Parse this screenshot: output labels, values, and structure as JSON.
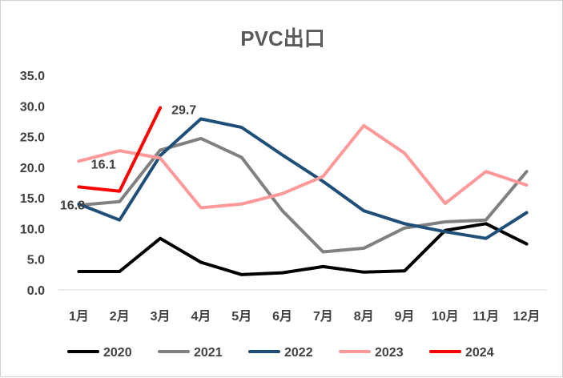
{
  "chart_data": {
    "type": "line",
    "title": "PVC出口",
    "categories": [
      "1月",
      "2月",
      "3月",
      "4月",
      "5月",
      "6月",
      "7月",
      "8月",
      "9月",
      "10月",
      "11月",
      "12月"
    ],
    "ylim": [
      0,
      35
    ],
    "yticks": [
      "0.0",
      "5.0",
      "10.0",
      "15.0",
      "20.0",
      "25.0",
      "30.0",
      "35.0"
    ],
    "grid": false,
    "legend_position": "bottom",
    "series": [
      {
        "name": "2020",
        "color": "#000000",
        "values": [
          3.0,
          3.0,
          8.4,
          4.5,
          2.5,
          2.8,
          3.8,
          2.9,
          3.1,
          9.7,
          10.8,
          7.5
        ]
      },
      {
        "name": "2021",
        "color": "#808080",
        "values": [
          13.8,
          14.4,
          22.8,
          24.7,
          21.6,
          12.9,
          6.2,
          6.8,
          10.1,
          11.1,
          11.4,
          19.3
        ]
      },
      {
        "name": "2022",
        "color": "#1f4e79",
        "values": [
          14.0,
          11.4,
          21.9,
          27.9,
          26.5,
          22.0,
          17.7,
          12.9,
          10.8,
          9.5,
          8.4,
          12.6
        ]
      },
      {
        "name": "2023",
        "color": "#ff9999",
        "values": [
          21.0,
          22.7,
          21.5,
          13.4,
          14.0,
          15.7,
          18.5,
          26.8,
          22.3,
          14.1,
          19.3,
          17.1
        ]
      },
      {
        "name": "2024",
        "color": "#ff0000",
        "values": [
          16.8,
          16.1,
          29.7,
          null,
          null,
          null,
          null,
          null,
          null,
          null,
          null,
          null
        ]
      }
    ],
    "annotations": [
      {
        "series": "2024",
        "category": "1月",
        "text": "16.8"
      },
      {
        "series": "2024",
        "category": "2月",
        "text": "16.1"
      },
      {
        "series": "2024",
        "category": "3月",
        "text": "29.7"
      }
    ]
  }
}
